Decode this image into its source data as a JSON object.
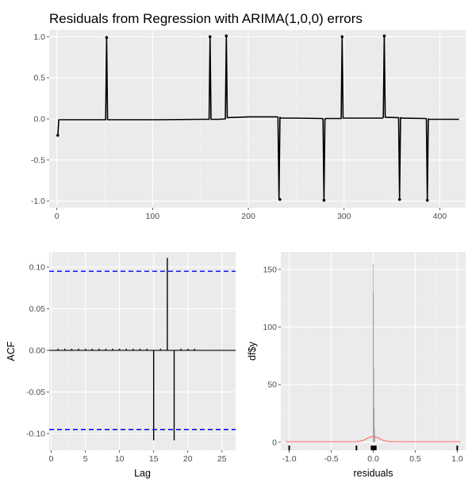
{
  "page": {
    "title": "Residuals from Regression with ARIMA(1,0,0) errors"
  },
  "colors": {
    "panel_bg": "#ebebeb",
    "grid_major": "#ffffff",
    "grid_minor": "#f3f3f3",
    "line": "#000000",
    "ci_line": "#0000ff",
    "density": "#f8766d",
    "tick_text": "#4d4d4d"
  },
  "chart_data": [
    {
      "type": "line",
      "title": "Residuals from Regression with ARIMA(1,0,0) errors",
      "xlabel": "",
      "ylabel": "",
      "xlim": [
        -8,
        427
      ],
      "ylim": [
        -1.08,
        1.08
      ],
      "xticks": [
        0,
        100,
        200,
        300,
        400
      ],
      "yticks": [
        -1.0,
        -0.5,
        0.0,
        0.5,
        1.0
      ],
      "ytick_labels": [
        "-1.0",
        "-0.5",
        "0.0",
        "0.5",
        "1.0"
      ],
      "grid": true,
      "x": [
        1,
        2,
        3,
        20,
        50,
        51,
        52,
        53,
        100,
        107,
        108,
        150,
        159,
        160,
        161,
        170,
        175,
        176,
        177,
        178,
        200,
        230,
        231,
        232,
        233,
        234,
        250,
        277,
        278,
        279,
        280,
        281,
        296,
        297,
        298,
        299,
        320,
        340,
        341,
        342,
        343,
        344,
        356,
        357,
        358,
        359,
        360,
        385,
        386,
        387,
        388,
        389,
        410,
        420
      ],
      "y": [
        -0.2,
        -0.01,
        -0.01,
        -0.01,
        -0.01,
        -0.01,
        0.99,
        -0.01,
        -0.01,
        -0.01,
        -0.01,
        -0.005,
        -0.005,
        1.0,
        -0.005,
        -0.005,
        0.0,
        0.0,
        1.01,
        0.015,
        0.025,
        0.025,
        0.02,
        -0.98,
        0.02,
        0.01,
        0.01,
        0.005,
        0.0,
        -0.99,
        0.0,
        0.005,
        0.005,
        0.005,
        1.0,
        0.01,
        0.01,
        0.01,
        0.02,
        1.01,
        0.02,
        0.02,
        0.015,
        0.015,
        -0.98,
        0.015,
        0.01,
        0.005,
        0.0,
        -0.99,
        0.0,
        -0.005,
        -0.005,
        -0.005
      ],
      "highlighted_points": [
        {
          "x": 1,
          "y": -0.2
        },
        {
          "x": 52,
          "y": 0.99
        },
        {
          "x": 160,
          "y": 1.0
        },
        {
          "x": 177,
          "y": 1.01
        },
        {
          "x": 233,
          "y": -0.98
        },
        {
          "x": 279,
          "y": -0.99
        },
        {
          "x": 298,
          "y": 1.0
        },
        {
          "x": 342,
          "y": 1.01
        },
        {
          "x": 358,
          "y": -0.98
        },
        {
          "x": 387,
          "y": -0.99
        }
      ]
    },
    {
      "type": "bar",
      "subtype": "acf",
      "xlabel": "Lag",
      "ylabel": "ACF",
      "xlim": [
        -0.3,
        27
      ],
      "ylim": [
        -0.12,
        0.118
      ],
      "xticks": [
        0,
        5,
        10,
        15,
        20,
        25
      ],
      "yticks": [
        -0.1,
        -0.05,
        0.0,
        0.05,
        0.1
      ],
      "ytick_labels": [
        "-0.10",
        "-0.05",
        "0.00",
        "0.05",
        "0.10"
      ],
      "grid": true,
      "lags": [
        1,
        2,
        3,
        4,
        5,
        6,
        7,
        8,
        9,
        10,
        11,
        12,
        13,
        14,
        15,
        16,
        17,
        18,
        19,
        20,
        21,
        22,
        23,
        24,
        25,
        26
      ],
      "values": [
        0.002,
        0.002,
        0.002,
        0.002,
        0.002,
        0.002,
        0.002,
        0.002,
        0.002,
        0.002,
        0.002,
        0.002,
        0.002,
        0.002,
        -0.108,
        0.002,
        0.111,
        -0.108,
        0.002,
        0.002,
        0.002,
        0.0,
        0.0,
        0.0,
        0.0,
        0.0
      ],
      "ci": 0.095
    },
    {
      "type": "bar",
      "subtype": "histogram",
      "xlabel": "residuals",
      "ylabel": "df$y",
      "xlim": [
        -1.1,
        1.1
      ],
      "ylim": [
        -7,
        165
      ],
      "xticks": [
        -1.0,
        -0.5,
        0.0,
        0.5,
        1.0
      ],
      "xtick_labels": [
        "-1.0",
        "-0.5",
        "0.0",
        "0.5",
        "1.0"
      ],
      "yticks": [
        0,
        50,
        100,
        150
      ],
      "grid": true,
      "bins": [
        -0.005,
        0.0,
        0.005,
        0.01,
        0.015,
        0.02,
        0.025
      ],
      "counts": [
        155,
        130,
        65,
        30,
        12,
        6,
        3
      ],
      "rug": [
        -1.0,
        -0.2,
        -0.02,
        -0.01,
        0.0,
        0.01,
        0.02,
        0.03,
        1.0
      ],
      "density_peak": 4.5,
      "density_sd": 0.075
    }
  ]
}
